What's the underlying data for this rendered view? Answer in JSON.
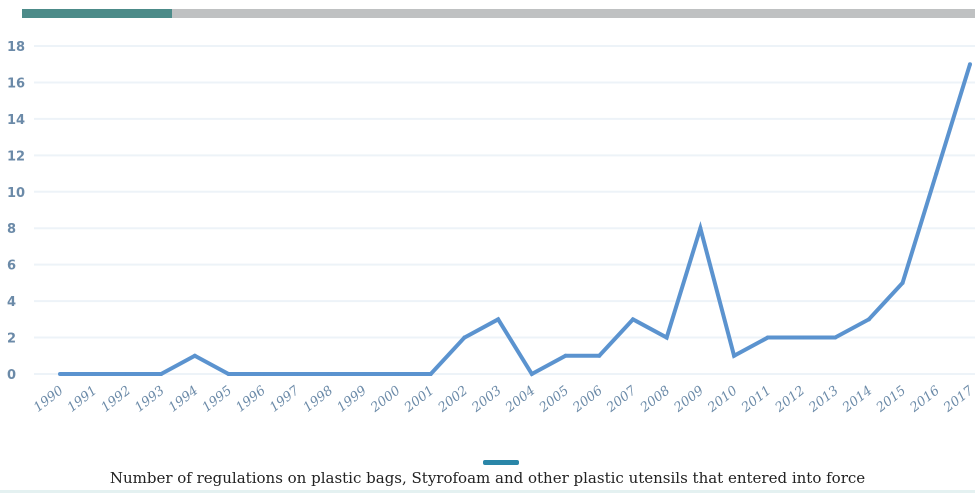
{
  "progress": {
    "fraction": 0.157,
    "fill_color": "#4c8b89",
    "track_color": "#bfc1c2"
  },
  "chart_data": {
    "type": "line",
    "title": "",
    "xlabel": "",
    "ylabel": "",
    "categories": [
      "1990",
      "1991",
      "1992",
      "1993",
      "1994",
      "1995",
      "1996",
      "1997",
      "1998",
      "1999",
      "2000",
      "2001",
      "2002",
      "2003",
      "2004",
      "2005",
      "2006",
      "2007",
      "2008",
      "2009",
      "2010",
      "2011",
      "2012",
      "2013",
      "2014",
      "2015",
      "2016",
      "2017"
    ],
    "series": [
      {
        "name": "Number of regulations on plastic bags, Styrofoam and other plastic utensils that entered into force",
        "values": [
          0,
          0,
          0,
          0,
          1,
          0,
          0,
          0,
          0,
          0,
          0,
          0,
          2,
          3,
          0,
          1,
          1,
          3,
          2,
          8,
          1,
          2,
          2,
          2,
          3,
          5,
          11,
          17
        ],
        "color": "#5b93cf"
      }
    ],
    "ylim": [
      0,
      18
    ],
    "yticks": [
      "0",
      "2",
      "4",
      "6",
      "8",
      "10",
      "12",
      "14",
      "16",
      "18"
    ],
    "grid": true,
    "legend": "bottom-center",
    "line_color": "#5b93cf",
    "grid_color": "#edf3f8",
    "tick_color": "#6b8aa8",
    "legend_swatch_color": "#2a86a8"
  },
  "legend": {
    "label": "Number of regulations on plastic bags, Styrofoam and other plastic utensils that entered into force"
  }
}
